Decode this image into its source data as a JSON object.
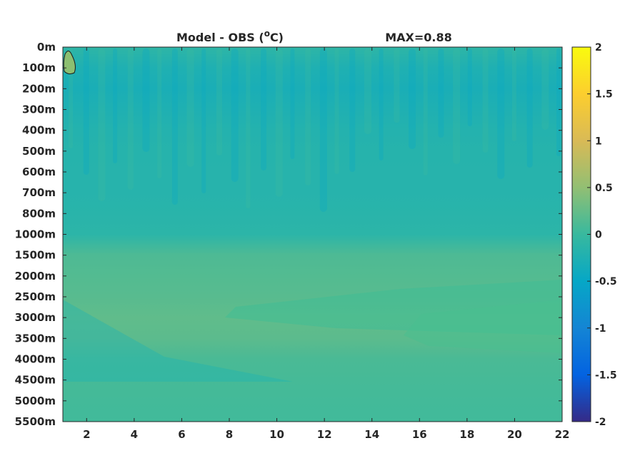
{
  "chart_data": {
    "type": "heatmap",
    "title": {
      "left_prefix": "Model - OBS (",
      "left_sup": "o",
      "left_suffix": "C)",
      "right": "MAX=0.88"
    },
    "xlabel": "",
    "ylabel": "",
    "xlim": [
      1,
      22
    ],
    "x_ticks": [
      2,
      4,
      6,
      8,
      10,
      12,
      14,
      16,
      18,
      20,
      22
    ],
    "x_tick_labels": [
      "2",
      "4",
      "6",
      "8",
      "10",
      "12",
      "14",
      "16",
      "18",
      "20",
      "22"
    ],
    "y_tick_labels": [
      "0m",
      "100m",
      "200m",
      "300m",
      "400m",
      "500m",
      "600m",
      "700m",
      "800m",
      "1000m",
      "1500m",
      "2000m",
      "2500m",
      "3000m",
      "3500m",
      "4000m",
      "4500m",
      "5000m",
      "5500m"
    ],
    "y_axis_direction": "reverse",
    "colorbar": {
      "range": [
        -2,
        2
      ],
      "ticks": [
        2,
        1.5,
        1,
        0.5,
        0,
        -0.5,
        -1,
        -1.5,
        -2
      ],
      "tick_labels": [
        "2",
        "1.5",
        "1",
        "0.5",
        "0",
        "-0.5",
        "-1",
        "-1.5",
        "-2"
      ],
      "colormap": "parula",
      "colormap_stops": [
        "#352a87",
        "#0363e1",
        "#1485d4",
        "#06a7c6",
        "#38b99e",
        "#92bf73",
        "#d9ba56",
        "#fcce2e",
        "#f9fb0e"
      ]
    },
    "bands": [
      {
        "depth": "0m",
        "value": -0.1
      },
      {
        "depth": "100m",
        "value": -0.25
      },
      {
        "depth": "200m",
        "value": -0.3
      },
      {
        "depth": "300m",
        "value": -0.25
      },
      {
        "depth": "400m",
        "value": -0.2
      },
      {
        "depth": "500m",
        "value": -0.18
      },
      {
        "depth": "600m",
        "value": -0.17
      },
      {
        "depth": "700m",
        "value": -0.17
      },
      {
        "depth": "800m",
        "value": -0.15
      },
      {
        "depth": "1000m",
        "value": -0.12
      },
      {
        "depth": "1500m",
        "value": 0.12
      },
      {
        "depth": "2000m",
        "value": 0.15
      },
      {
        "depth": "2500m",
        "value": 0.18
      },
      {
        "depth": "3000m",
        "value": 0.22
      },
      {
        "depth": "3500m",
        "value": 0.2
      },
      {
        "depth": "4000m",
        "value": 0.1
      },
      {
        "depth": "4500m",
        "value": 0.08
      },
      {
        "depth": "5000m",
        "value": 0.06
      },
      {
        "depth": "5500m",
        "value": 0.05
      }
    ],
    "max_value": 0.88,
    "hotspot": {
      "x": 1.3,
      "depth": "100m",
      "value": 0.88
    },
    "grid": false,
    "legend": "colorbar-right"
  }
}
